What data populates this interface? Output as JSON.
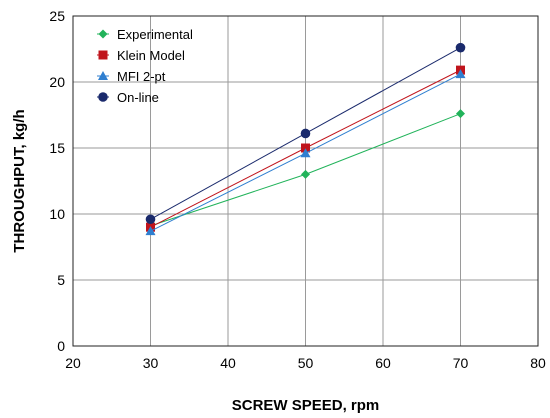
{
  "chart_data": {
    "type": "line",
    "xlabel": "SCREW SPEED, rpm",
    "ylabel": "THROUGHPUT, kg/h",
    "xlim": [
      20,
      80
    ],
    "ylim": [
      0,
      25
    ],
    "x_ticks": [
      20,
      30,
      40,
      50,
      60,
      70,
      80
    ],
    "y_ticks": [
      0,
      5,
      10,
      15,
      20,
      25
    ],
    "grid": true,
    "legend_position": "top-left",
    "x": [
      30,
      50,
      70
    ],
    "series": [
      {
        "name": "Experimental",
        "values": [
          9.1,
          13.0,
          17.6
        ],
        "color": "#21b35a",
        "marker": "diamond"
      },
      {
        "name": "Klein Model",
        "values": [
          9.0,
          15.0,
          20.9
        ],
        "color": "#c0141c",
        "marker": "square"
      },
      {
        "name": "MFI 2-pt",
        "values": [
          8.7,
          14.6,
          20.6
        ],
        "color": "#2f7fd0",
        "marker": "triangle"
      },
      {
        "name": "On-line",
        "values": [
          9.6,
          16.1,
          22.6
        ],
        "color": "#1a2a6c",
        "marker": "circle"
      }
    ]
  }
}
